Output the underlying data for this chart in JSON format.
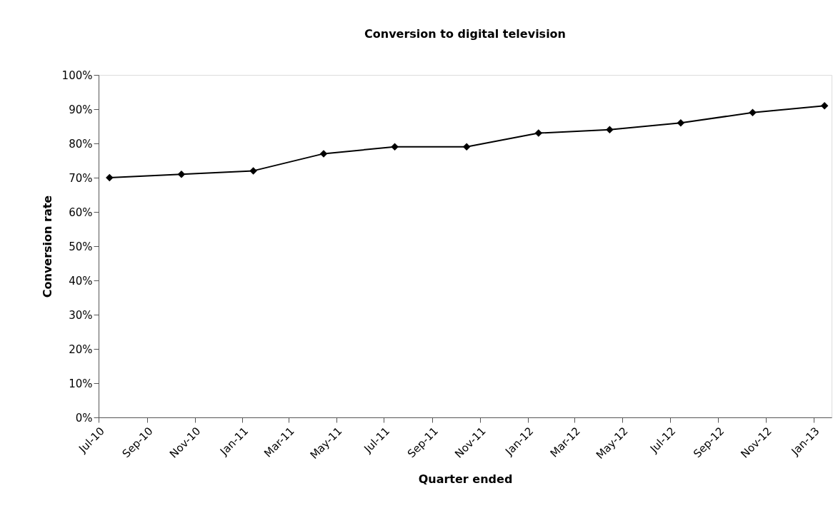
{
  "chart_data": {
    "type": "line",
    "title": "Conversion to digital television",
    "xlabel": "Quarter ended",
    "ylabel": "Conversion rate",
    "x": [
      "2010-07-15",
      "2010-10-15",
      "2011-01-15",
      "2011-04-15",
      "2011-07-15",
      "2011-10-15",
      "2012-01-15",
      "2012-04-15",
      "2012-07-15",
      "2012-10-15",
      "2013-01-15"
    ],
    "series": [
      {
        "color": "#000000",
        "values": [
          70,
          71,
          72,
          77,
          79,
          79,
          83,
          84,
          86,
          89,
          91
        ]
      }
    ],
    "marker": "diamond",
    "line_style": "solid",
    "grid": false,
    "xlim": [
      "2010-07-01",
      "2013-01-24"
    ],
    "xticks": [
      {
        "value": "2010-07-01",
        "label": "Jul-10"
      },
      {
        "value": "2010-09-01",
        "label": "Sep-10"
      },
      {
        "value": "2010-11-01",
        "label": "Nov-10"
      },
      {
        "value": "2011-01-01",
        "label": "Jan-11"
      },
      {
        "value": "2011-03-01",
        "label": "Mar-11"
      },
      {
        "value": "2011-05-01",
        "label": "May-11"
      },
      {
        "value": "2011-07-01",
        "label": "Jul-11"
      },
      {
        "value": "2011-09-01",
        "label": "Sep-11"
      },
      {
        "value": "2011-11-01",
        "label": "Nov-11"
      },
      {
        "value": "2012-01-01",
        "label": "Jan-12"
      },
      {
        "value": "2012-03-01",
        "label": "Mar-12"
      },
      {
        "value": "2012-05-01",
        "label": "May-12"
      },
      {
        "value": "2012-07-01",
        "label": "Jul-12"
      },
      {
        "value": "2012-09-01",
        "label": "Sep-12"
      },
      {
        "value": "2012-11-01",
        "label": "Nov-12"
      },
      {
        "value": "2013-01-01",
        "label": "Jan-13"
      }
    ],
    "ylim": [
      0,
      100
    ],
    "yticks": [
      {
        "value": 0,
        "label": "0%"
      },
      {
        "value": 10,
        "label": "10%"
      },
      {
        "value": 20,
        "label": "20%"
      },
      {
        "value": 30,
        "label": "30%"
      },
      {
        "value": 40,
        "label": "40%"
      },
      {
        "value": 50,
        "label": "50%"
      },
      {
        "value": 60,
        "label": "60%"
      },
      {
        "value": 70,
        "label": "70%"
      },
      {
        "value": 80,
        "label": "80%"
      },
      {
        "value": 90,
        "label": "90%"
      },
      {
        "value": 100,
        "label": "100%"
      }
    ]
  }
}
